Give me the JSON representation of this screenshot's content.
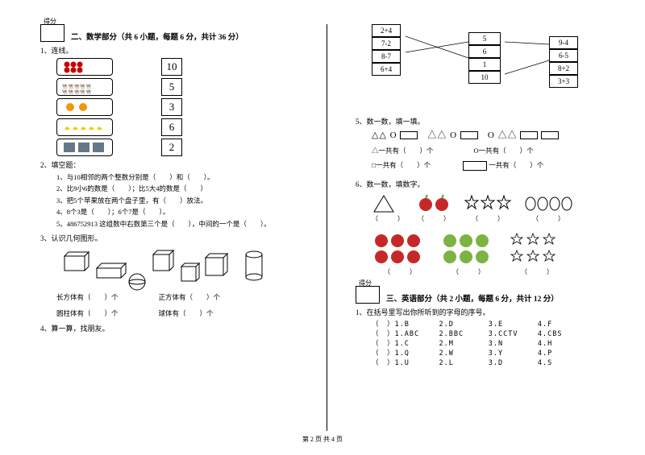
{
  "footer": "第 2 页 共 4 页",
  "left": {
    "score_label": "得分",
    "section_title": "二、数学部分（共 6 小题，每题 6 分，共计 36 分）",
    "q1_label": "1、连线。",
    "match_numbers": [
      "10",
      "5",
      "3",
      "6",
      "2"
    ],
    "q2_label": "2、填空题：",
    "fills": [
      "1、与10相邻的两个整数分别是（　　）和（　　）。",
      "2、比9小6的数是（　　）；比5大4的数是（　　）",
      "3、把5个苹果放在两个盘子里，有（　　）放法。",
      "4、8个3是（　　）；6个7是（　　）。",
      "5、486752913  这组数中右数第三个是（　　），中间的一个是（　　）。"
    ],
    "q3_label": "3、认识几何图形。",
    "shape_labels": {
      "cuboid": "长方体有（　　）个",
      "cube": "正方体有（　　）个",
      "cylinder": "圆柱体有（　　）个",
      "sphere": "球体有（　　）个"
    },
    "q4_label": "4、算一算，找朋友。"
  },
  "right": {
    "expr_left": [
      "2+4",
      "7-2",
      "8-7",
      "6+4"
    ],
    "expr_mid": [
      "5",
      "6",
      "1",
      "10"
    ],
    "expr_right": [
      "9-4",
      "6-5",
      "8+2",
      "3+3"
    ],
    "q5_label": "5、数一数，填一填。",
    "shape_line": "△△ O 　△△ O 　△△",
    "count_lines": {
      "tri": "△一共有（　　）个",
      "circ": "O一共有（　　）个",
      "sq": "□一共有（　　）个",
      "rect_label": "一共有（　　）个"
    },
    "q6_label": "6、数一数，填数字。",
    "paren": "（　　　）",
    "section3_title": "三、英语部分（共 2 小题，每题 6 分，共计 12 分）",
    "eng_q1": "1、在括号里写出你所听到的字母的序号。",
    "eng_rows": [
      [
        "（　）1.B",
        "2.D",
        "3.E",
        "4.F"
      ],
      [
        "（　）1.ABC",
        "2.BBC",
        "3.CCTV",
        "4.CBS"
      ],
      [
        "（　）1.C",
        "2.M",
        "3.N",
        "4.H"
      ],
      [
        "（　）1.Q",
        "2.W",
        "3.Y",
        "4.P"
      ],
      [
        "（　）1.U",
        "2.L",
        "3.D",
        "4.S"
      ]
    ]
  }
}
